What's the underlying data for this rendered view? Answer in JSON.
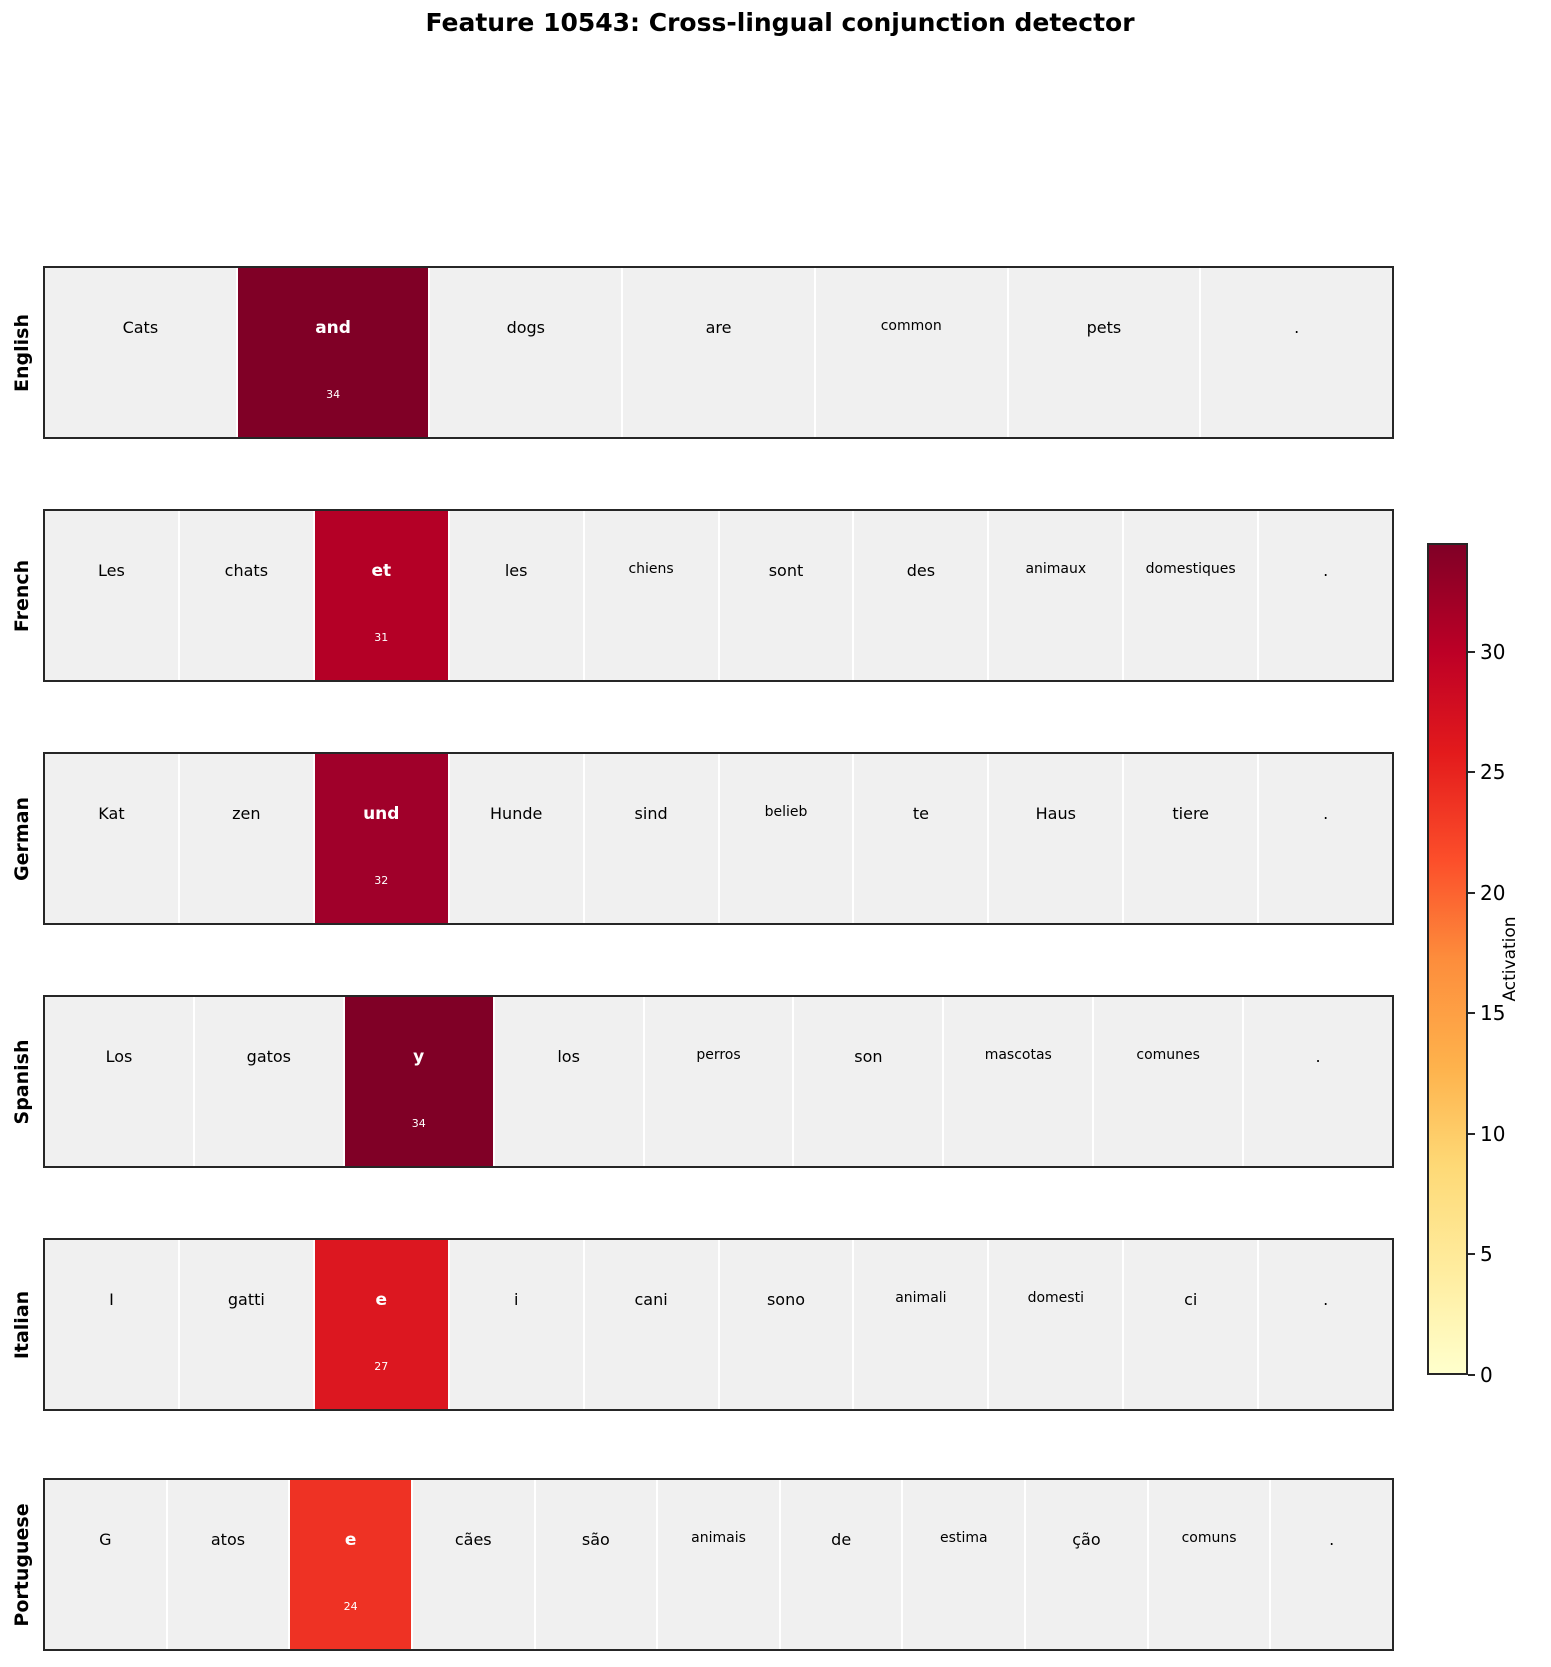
{
  "title": "Feature 10543: Cross-lingual conjunction detector",
  "colorbar": {
    "label": "Activation",
    "ticks": [
      "0",
      "5",
      "10",
      "15",
      "20",
      "25",
      "30"
    ],
    "min": 0,
    "max": 34.5,
    "colormap": "YlOrRd"
  },
  "rows": [
    {
      "language": "English",
      "tokens": [
        "Cats",
        "and",
        "dogs",
        "are",
        "common",
        "pets",
        "."
      ],
      "hot_index": 1,
      "hot_value": "34",
      "hot_color": "#800026"
    },
    {
      "language": "French",
      "tokens": [
        "Les",
        "chats",
        "et",
        "les",
        "chiens",
        "sont",
        "des",
        "animaux",
        "domestiques",
        "."
      ],
      "hot_index": 2,
      "hot_value": "31",
      "hot_color": "#b40026"
    },
    {
      "language": "German",
      "tokens": [
        "Kat",
        "zen",
        "und",
        "Hunde",
        "sind",
        "belieb",
        "te",
        "Haus",
        "tiere",
        "."
      ],
      "hot_index": 2,
      "hot_value": "32",
      "hot_color": "#a0002a"
    },
    {
      "language": "Spanish",
      "tokens": [
        "Los",
        "gatos",
        "y",
        "los",
        "perros",
        "son",
        "mascotas",
        "comunes",
        "."
      ],
      "hot_index": 2,
      "hot_value": "34",
      "hot_color": "#800026"
    },
    {
      "language": "Italian",
      "tokens": [
        "I",
        "gatti",
        "e",
        "i",
        "cani",
        "sono",
        "animali",
        "domesti",
        "ci",
        "."
      ],
      "hot_index": 2,
      "hot_value": "27",
      "hot_color": "#dc1720"
    },
    {
      "language": "Portuguese",
      "tokens": [
        "G",
        "atos",
        "e",
        "cães",
        "são",
        "animais",
        "de",
        "estima",
        "ção",
        "comuns",
        "."
      ],
      "hot_index": 2,
      "hot_value": "24",
      "hot_color": "#ee3224"
    }
  ],
  "chart_data": {
    "type": "heatmap",
    "title": "Feature 10543: Cross-lingual conjunction detector",
    "colorbar_label": "Activation",
    "colorbar_range": [
      0,
      34
    ],
    "colorbar_ticks": [
      0,
      5,
      10,
      15,
      20,
      25,
      30
    ],
    "series": [
      {
        "name": "English",
        "tokens": [
          "Cats",
          "and",
          "dogs",
          "are",
          "common",
          "pets",
          "."
        ],
        "values": [
          0,
          34,
          0,
          0,
          0,
          0,
          0
        ]
      },
      {
        "name": "French",
        "tokens": [
          "Les",
          "chats",
          "et",
          "les",
          "chiens",
          "sont",
          "des",
          "animaux",
          "domestiques",
          "."
        ],
        "values": [
          0,
          0,
          31,
          0,
          0,
          0,
          0,
          0,
          0,
          0
        ]
      },
      {
        "name": "German",
        "tokens": [
          "Kat",
          "zen",
          "und",
          "Hunde",
          "sind",
          "belieb",
          "te",
          "Haus",
          "tiere",
          "."
        ],
        "values": [
          0,
          0,
          32,
          0,
          0,
          0,
          0,
          0,
          0,
          0
        ]
      },
      {
        "name": "Spanish",
        "tokens": [
          "Los",
          "gatos",
          "y",
          "los",
          "perros",
          "son",
          "mascotas",
          "comunes",
          "."
        ],
        "values": [
          0,
          0,
          34,
          0,
          0,
          0,
          0,
          0,
          0
        ]
      },
      {
        "name": "Italian",
        "tokens": [
          "I",
          "gatti",
          "e",
          "i",
          "cani",
          "sono",
          "animali",
          "domesti",
          "ci",
          "."
        ],
        "values": [
          0,
          0,
          27,
          0,
          0,
          0,
          0,
          0,
          0,
          0
        ]
      },
      {
        "name": "Portuguese",
        "tokens": [
          "G",
          "atos",
          "e",
          "cães",
          "são",
          "animais",
          "de",
          "estima",
          "ção",
          "comuns",
          "."
        ],
        "values": [
          0,
          0,
          24,
          0,
          0,
          0,
          0,
          0,
          0,
          0,
          0
        ]
      }
    ]
  }
}
